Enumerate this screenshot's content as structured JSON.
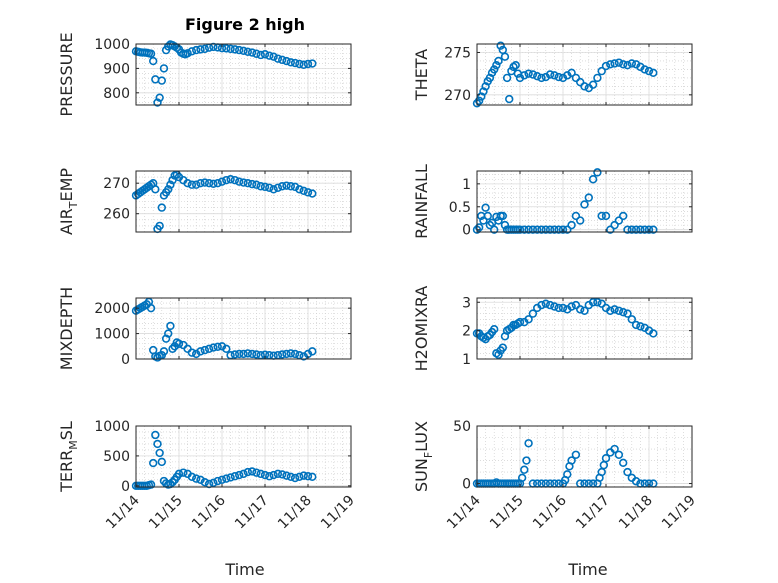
{
  "figure_title": "Figure 2 high",
  "colors": {
    "marker": "#0072BD",
    "axis": "#262626",
    "grid": "#b0b0b0"
  },
  "chart_data": [
    {
      "type": "scatter",
      "ylabel": "PRESSURE",
      "ylim": [
        750,
        1000
      ],
      "yticks": [
        800,
        900,
        1000
      ],
      "ytick_labels": [
        "800",
        "900",
        "1000"
      ],
      "xlim": [
        0,
        5
      ],
      "x": [
        0,
        0.05,
        0.1,
        0.15,
        0.2,
        0.25,
        0.3,
        0.35,
        0.4,
        0.45,
        0.5,
        0.55,
        0.6,
        0.65,
        0.7,
        0.75,
        0.8,
        0.85,
        0.9,
        0.95,
        1.0,
        1.05,
        1.1,
        1.15,
        1.2,
        1.3,
        1.4,
        1.5,
        1.6,
        1.7,
        1.8,
        1.9,
        2.0,
        2.1,
        2.2,
        2.3,
        2.4,
        2.5,
        2.6,
        2.7,
        2.8,
        2.9,
        3.0,
        3.1,
        3.2,
        3.3,
        3.4,
        3.5,
        3.6,
        3.7,
        3.8,
        3.9,
        4.0,
        4.1
      ],
      "y": [
        970,
        968,
        966,
        965,
        965,
        964,
        962,
        960,
        930,
        855,
        760,
        780,
        850,
        900,
        975,
        990,
        998,
        995,
        990,
        985,
        978,
        965,
        960,
        958,
        962,
        970,
        975,
        978,
        980,
        985,
        988,
        986,
        983,
        982,
        980,
        978,
        975,
        972,
        968,
        965,
        960,
        955,
        958,
        952,
        948,
        940,
        935,
        930,
        925,
        922,
        918,
        915,
        918,
        920
      ]
    },
    {
      "type": "scatter",
      "ylabel": "THETA",
      "ylim": [
        268.8,
        276
      ],
      "yticks": [
        270,
        275
      ],
      "ytick_labels": [
        "270",
        "275"
      ],
      "xlim": [
        0,
        5
      ],
      "x": [
        0,
        0.05,
        0.1,
        0.15,
        0.2,
        0.25,
        0.3,
        0.35,
        0.4,
        0.45,
        0.5,
        0.55,
        0.6,
        0.65,
        0.7,
        0.75,
        0.8,
        0.85,
        0.9,
        0.95,
        1.0,
        1.1,
        1.2,
        1.3,
        1.4,
        1.5,
        1.6,
        1.7,
        1.8,
        1.9,
        2.0,
        2.1,
        2.2,
        2.3,
        2.4,
        2.5,
        2.6,
        2.7,
        2.8,
        2.9,
        3.0,
        3.1,
        3.2,
        3.3,
        3.4,
        3.5,
        3.6,
        3.7,
        3.8,
        3.9,
        4.0,
        4.1
      ],
      "y": [
        269,
        269.3,
        269.8,
        270.4,
        271,
        271.6,
        272,
        272.6,
        273,
        273.5,
        274,
        275.8,
        275.3,
        274.5,
        272,
        269.5,
        272.8,
        273.3,
        273.5,
        272.5,
        272,
        272.3,
        272.5,
        272.4,
        272.2,
        272,
        272.1,
        272.4,
        272.3,
        272.1,
        272,
        272.3,
        272.6,
        272,
        271.5,
        271,
        270.8,
        271.2,
        272,
        272.8,
        273.4,
        273.6,
        273.7,
        273.8,
        273.6,
        273.5,
        273.7,
        273.6,
        273.3,
        273,
        272.8,
        272.6
      ]
    },
    {
      "type": "scatter",
      "ylabel": "AIR",
      "ylabel_sub": "T",
      "ylabel_tail": "EMP",
      "ylim": [
        254,
        274
      ],
      "yticks": [
        260,
        270
      ],
      "ytick_labels": [
        "260",
        "270"
      ],
      "xlim": [
        0,
        5
      ],
      "x": [
        0,
        0.05,
        0.1,
        0.15,
        0.2,
        0.25,
        0.3,
        0.35,
        0.4,
        0.45,
        0.5,
        0.55,
        0.6,
        0.65,
        0.7,
        0.75,
        0.8,
        0.85,
        0.9,
        0.95,
        1.0,
        1.1,
        1.2,
        1.3,
        1.4,
        1.5,
        1.6,
        1.7,
        1.8,
        1.9,
        2.0,
        2.1,
        2.2,
        2.3,
        2.4,
        2.5,
        2.6,
        2.7,
        2.8,
        2.9,
        3.0,
        3.1,
        3.2,
        3.3,
        3.4,
        3.5,
        3.6,
        3.7,
        3.8,
        3.9,
        4.0,
        4.1
      ],
      "y": [
        266,
        266.5,
        267,
        267.5,
        268,
        268.5,
        269,
        269.5,
        270,
        268,
        255,
        256,
        262,
        266,
        267,
        268,
        269.5,
        271,
        272.5,
        272.8,
        272,
        271,
        270,
        269.5,
        269.5,
        270,
        270.2,
        270,
        269.8,
        270,
        270.5,
        271,
        271.3,
        271,
        270.5,
        270.2,
        270,
        269.7,
        269.5,
        269,
        268.8,
        268.5,
        268,
        268.5,
        269,
        269.2,
        269,
        268.8,
        268,
        267.5,
        267,
        266.6
      ]
    },
    {
      "type": "scatter",
      "ylabel": "RAINFALL",
      "ylim": [
        -0.05,
        1.28
      ],
      "yticks": [
        0,
        0.5,
        1
      ],
      "ytick_labels": [
        "0",
        "0.5",
        "1"
      ],
      "xlim": [
        0,
        5
      ],
      "x": [
        0,
        0.05,
        0.1,
        0.15,
        0.2,
        0.25,
        0.3,
        0.35,
        0.4,
        0.45,
        0.5,
        0.55,
        0.6,
        0.65,
        0.7,
        0.75,
        0.8,
        0.85,
        0.9,
        0.95,
        1.0,
        1.1,
        1.2,
        1.3,
        1.4,
        1.5,
        1.6,
        1.7,
        1.8,
        1.9,
        2.0,
        2.1,
        2.2,
        2.3,
        2.4,
        2.5,
        2.6,
        2.7,
        2.8,
        2.9,
        3.0,
        3.1,
        3.2,
        3.3,
        3.4,
        3.5,
        3.6,
        3.7,
        3.8,
        3.9,
        4.0,
        4.1
      ],
      "y": [
        0,
        0.05,
        0.3,
        0.2,
        0.48,
        0.3,
        0.1,
        0.15,
        0,
        0.28,
        0.2,
        0.3,
        0.3,
        0.1,
        0,
        0,
        0,
        0,
        0,
        0,
        0,
        0,
        0,
        0,
        0,
        0,
        0,
        0,
        0,
        0,
        0,
        0,
        0.1,
        0.3,
        0.2,
        0.55,
        0.7,
        1.1,
        1.25,
        0.3,
        0.3,
        0,
        0.1,
        0.2,
        0.3,
        0,
        0,
        0,
        0,
        0,
        0,
        0
      ]
    },
    {
      "type": "scatter",
      "ylabel": "MIXDEPTH",
      "ylim": [
        0,
        2400
      ],
      "yticks": [
        0,
        1000,
        2000
      ],
      "ytick_labels": [
        "0",
        "1000",
        "2000"
      ],
      "xlim": [
        0,
        5
      ],
      "x": [
        0,
        0.05,
        0.1,
        0.15,
        0.2,
        0.25,
        0.3,
        0.35,
        0.4,
        0.45,
        0.5,
        0.55,
        0.6,
        0.65,
        0.7,
        0.75,
        0.8,
        0.85,
        0.9,
        0.95,
        1.0,
        1.1,
        1.2,
        1.3,
        1.4,
        1.5,
        1.6,
        1.7,
        1.8,
        1.9,
        2.0,
        2.1,
        2.2,
        2.3,
        2.4,
        2.5,
        2.6,
        2.7,
        2.8,
        2.9,
        3.0,
        3.1,
        3.2,
        3.3,
        3.4,
        3.5,
        3.6,
        3.7,
        3.8,
        3.9,
        4.0,
        4.1
      ],
      "y": [
        1900,
        1950,
        2000,
        2050,
        2100,
        2150,
        2250,
        2000,
        350,
        100,
        60,
        120,
        150,
        300,
        800,
        1000,
        1300,
        400,
        500,
        650,
        600,
        550,
        400,
        250,
        200,
        300,
        350,
        400,
        450,
        480,
        500,
        400,
        150,
        180,
        200,
        200,
        220,
        200,
        180,
        150,
        170,
        150,
        130,
        150,
        180,
        200,
        220,
        200,
        150,
        100,
        200,
        300
      ]
    },
    {
      "type": "scatter",
      "ylabel": "H2OMIXRA",
      "ylim": [
        1.0,
        3.15
      ],
      "yticks": [
        1,
        2,
        3
      ],
      "ytick_labels": [
        "1",
        "2",
        "3"
      ],
      "xlim": [
        0,
        5
      ],
      "x": [
        0,
        0.05,
        0.1,
        0.15,
        0.2,
        0.25,
        0.3,
        0.35,
        0.4,
        0.45,
        0.5,
        0.55,
        0.6,
        0.65,
        0.7,
        0.75,
        0.8,
        0.85,
        0.9,
        0.95,
        1.0,
        1.1,
        1.2,
        1.3,
        1.4,
        1.5,
        1.6,
        1.7,
        1.8,
        1.9,
        2.0,
        2.1,
        2.2,
        2.3,
        2.4,
        2.5,
        2.6,
        2.7,
        2.8,
        2.9,
        3.0,
        3.1,
        3.2,
        3.3,
        3.4,
        3.5,
        3.6,
        3.7,
        3.8,
        3.9,
        4.0,
        4.1
      ],
      "y": [
        1.9,
        1.9,
        1.8,
        1.75,
        1.7,
        1.8,
        1.85,
        1.95,
        2.05,
        1.2,
        1.15,
        1.3,
        1.4,
        1.8,
        2.0,
        2.05,
        2.1,
        2.2,
        2.2,
        2.25,
        2.3,
        2.3,
        2.4,
        2.6,
        2.8,
        2.9,
        2.95,
        2.9,
        2.85,
        2.8,
        2.8,
        2.75,
        2.85,
        2.9,
        2.75,
        2.7,
        2.9,
        3.0,
        3.0,
        2.95,
        2.8,
        2.7,
        2.75,
        2.7,
        2.65,
        2.6,
        2.4,
        2.2,
        2.15,
        2.1,
        2.0,
        1.9
      ]
    },
    {
      "type": "scatter",
      "ylabel": "TERR",
      "ylabel_sub": "M",
      "ylabel_tail": "SL",
      "ylim": [
        -20,
        1000
      ],
      "yticks": [
        0,
        500,
        1000
      ],
      "ytick_labels": [
        "0",
        "500",
        "1000"
      ],
      "xlim": [
        0,
        5
      ],
      "x": [
        0,
        0.05,
        0.1,
        0.15,
        0.2,
        0.25,
        0.3,
        0.35,
        0.4,
        0.45,
        0.5,
        0.55,
        0.6,
        0.65,
        0.7,
        0.75,
        0.8,
        0.85,
        0.9,
        0.95,
        1.0,
        1.1,
        1.2,
        1.3,
        1.4,
        1.5,
        1.6,
        1.7,
        1.8,
        1.9,
        2.0,
        2.1,
        2.2,
        2.3,
        2.4,
        2.5,
        2.6,
        2.7,
        2.8,
        2.9,
        3.0,
        3.1,
        3.2,
        3.3,
        3.4,
        3.5,
        3.6,
        3.7,
        3.8,
        3.9,
        4.0,
        4.1
      ],
      "y": [
        0,
        0,
        0,
        0,
        0,
        0,
        10,
        20,
        380,
        850,
        700,
        550,
        400,
        80,
        40,
        20,
        30,
        60,
        100,
        150,
        200,
        220,
        200,
        150,
        120,
        100,
        60,
        30,
        50,
        80,
        100,
        120,
        140,
        160,
        180,
        200,
        230,
        240,
        220,
        200,
        180,
        160,
        180,
        200,
        190,
        170,
        150,
        130,
        150,
        170,
        160,
        150
      ]
    },
    {
      "type": "scatter",
      "ylabel": "SUN",
      "ylabel_sub": "F",
      "ylabel_tail": "LUX",
      "ylim": [
        -3,
        50
      ],
      "yticks": [
        0,
        50
      ],
      "ytick_labels": [
        "0",
        "50"
      ],
      "xlim": [
        0,
        5
      ],
      "x": [
        0,
        0.05,
        0.1,
        0.15,
        0.2,
        0.25,
        0.3,
        0.35,
        0.4,
        0.45,
        0.5,
        0.55,
        0.6,
        0.65,
        0.7,
        0.75,
        0.8,
        0.85,
        0.9,
        0.95,
        1.0,
        1.05,
        1.1,
        1.15,
        1.2,
        1.3,
        1.4,
        1.5,
        1.6,
        1.7,
        1.8,
        1.9,
        2.0,
        2.05,
        2.1,
        2.15,
        2.2,
        2.3,
        2.4,
        2.5,
        2.6,
        2.7,
        2.8,
        2.85,
        2.9,
        2.95,
        3.0,
        3.1,
        3.2,
        3.3,
        3.4,
        3.5,
        3.6,
        3.7,
        3.8,
        3.9,
        4.0,
        4.1
      ],
      "y": [
        0,
        0,
        0,
        0,
        0,
        0,
        0,
        0,
        0,
        1,
        0,
        0,
        0,
        0,
        0,
        0,
        0,
        0,
        0,
        0,
        0,
        5,
        12,
        20,
        35,
        0,
        0,
        0,
        0,
        0,
        0,
        0,
        0,
        3,
        8,
        15,
        20,
        25,
        0,
        0,
        0,
        0,
        0,
        5,
        10,
        16,
        22,
        27,
        30,
        25,
        18,
        10,
        5,
        2,
        0,
        0,
        0,
        0
      ]
    }
  ],
  "x_axis": {
    "ticks": [
      0,
      1,
      2,
      3,
      4,
      5
    ],
    "tick_labels": [
      "11/14",
      "11/15",
      "11/16",
      "11/17",
      "11/18",
      "11/19"
    ],
    "label": "Time"
  }
}
